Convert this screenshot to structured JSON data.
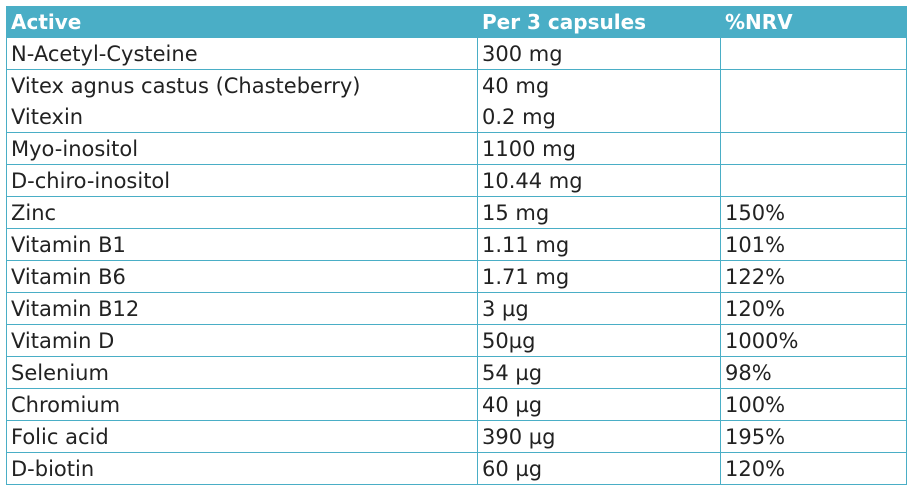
{
  "table": {
    "headers": [
      "Active",
      "Per 3 capsules",
      "%NRV"
    ],
    "rows": [
      {
        "active": "N-Acetyl-Cysteine",
        "amount": "300 mg",
        "nrv": ""
      },
      {
        "active": "Vitex agnus castus (Chasteberry)",
        "amount": "40 mg",
        "nrv": ""
      },
      {
        "active": "Vitexin",
        "amount": "0.2 mg",
        "nrv": ""
      },
      {
        "active": "Myo-inositol",
        "amount": "1100 mg",
        "nrv": ""
      },
      {
        "active": "D-chiro-inositol",
        "amount": "10.44 mg",
        "nrv": ""
      },
      {
        "active": "Zinc",
        "amount": "15 mg",
        "nrv": "150%"
      },
      {
        "active": "Vitamin B1",
        "amount": "1.11 mg",
        "nrv": "101%"
      },
      {
        "active": "Vitamin B6",
        "amount": "1.71 mg",
        "nrv": "122%"
      },
      {
        "active": "Vitamin B12",
        "amount": "3 µg",
        "nrv": "120%"
      },
      {
        "active": "Vitamin D",
        "amount": "50µg",
        "nrv": "1000%"
      },
      {
        "active": "Selenium",
        "amount": "54 µg",
        "nrv": "98%"
      },
      {
        "active": "Chromium",
        "amount": "40 µg",
        "nrv": "100%"
      },
      {
        "active": "Folic acid",
        "amount": "390 µg",
        "nrv": "195%"
      },
      {
        "active": "D-biotin",
        "amount": "60 µg",
        "nrv": "120%"
      }
    ]
  },
  "colors": {
    "header_bg": "#4aaec6",
    "header_text": "#ffffff",
    "border": "#4aaec6"
  }
}
